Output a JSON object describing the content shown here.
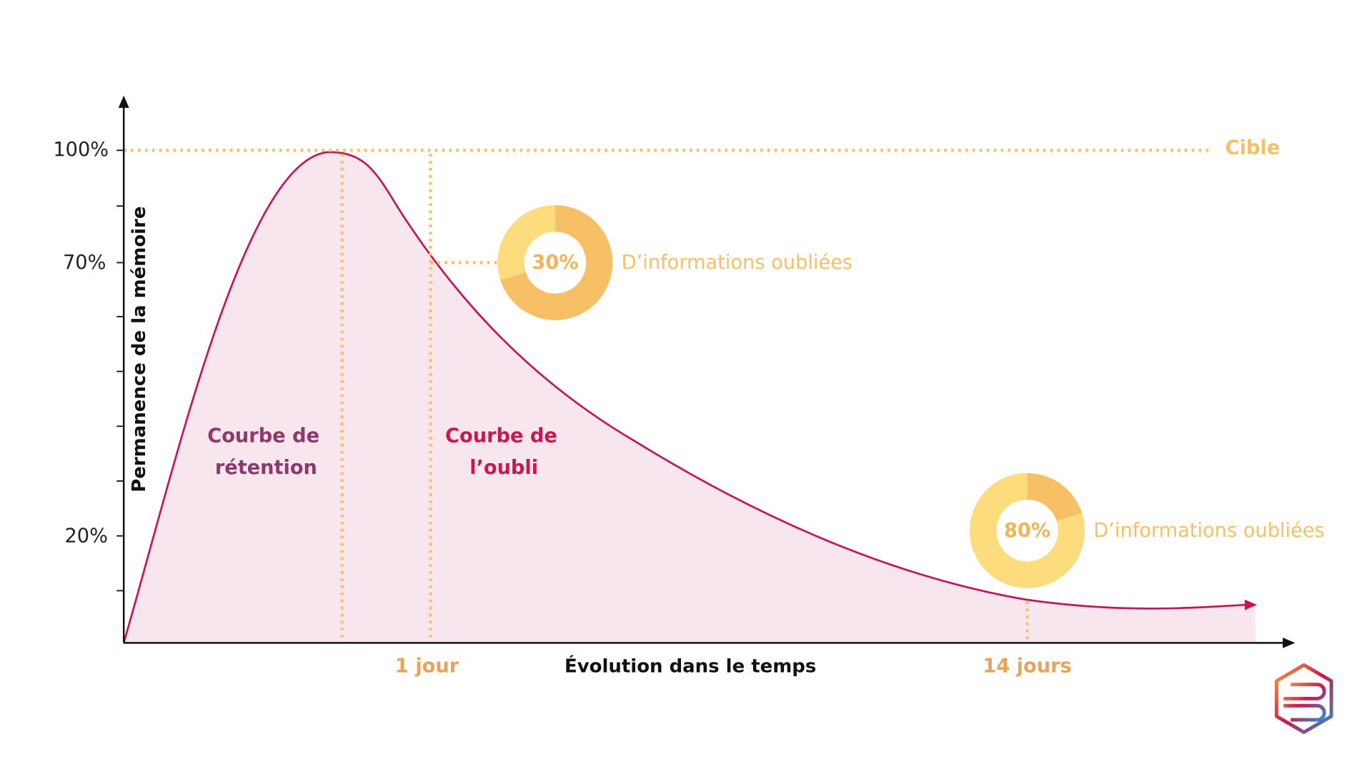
{
  "axis": {
    "y_title": "Permanence de la mémoire",
    "x_title": "Évolution dans le temps",
    "y_ticks": [
      "100%",
      "70%",
      "20%"
    ]
  },
  "target_label": "Cible",
  "curves": {
    "retention": [
      "Courbe de",
      "rétention"
    ],
    "forgetting": [
      "Courbe de",
      "l’oubli"
    ]
  },
  "time_markers": [
    "1 jour",
    "14 jours"
  ],
  "donuts": [
    {
      "value": 30,
      "label": "30%",
      "caption": "D’informations oubliées"
    },
    {
      "value": 80,
      "label": "80%",
      "caption": "D’informations oubliées"
    }
  ]
}
